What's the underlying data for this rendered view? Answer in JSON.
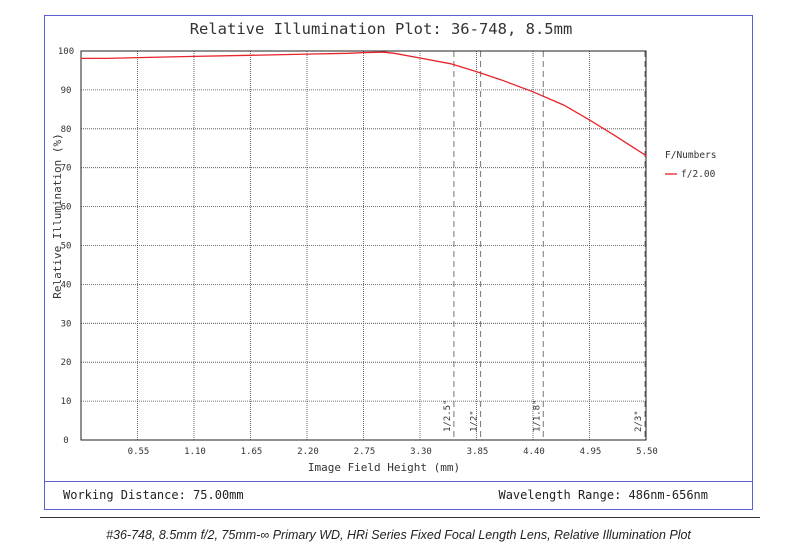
{
  "chart_data": {
    "type": "line",
    "title": "Relative Illumination Plot: 36-748, 8.5mm",
    "xlabel": "Image Field Height (mm)",
    "ylabel": "Relative Illumination (%)",
    "xlim": [
      0,
      5.5
    ],
    "ylim": [
      0,
      100
    ],
    "x_ticks": [
      "0.55",
      "1.10",
      "1.65",
      "2.20",
      "2.75",
      "3.30",
      "3.85",
      "4.40",
      "4.95",
      "5.50"
    ],
    "x_tick_values": [
      0.55,
      1.1,
      1.65,
      2.2,
      2.75,
      3.3,
      3.85,
      4.4,
      4.95,
      5.5
    ],
    "y_ticks": [
      "0",
      "10",
      "20",
      "30",
      "40",
      "50",
      "60",
      "70",
      "80",
      "90",
      "100"
    ],
    "y_tick_values": [
      0,
      10,
      20,
      30,
      40,
      50,
      60,
      70,
      80,
      90,
      100
    ],
    "grid": true,
    "legend_title": "F/Numbers",
    "legend_position": "right",
    "series": [
      {
        "name": "f/2.00",
        "color": "#e8232a",
        "x": [
          0,
          0.25,
          0.55,
          1.1,
          1.65,
          2.2,
          2.6,
          2.75,
          2.95,
          3.05,
          3.3,
          3.6,
          3.85,
          4.1,
          4.4,
          4.7,
          4.95,
          5.2,
          5.5
        ],
        "y": [
          98.1,
          98.1,
          98.3,
          98.6,
          98.9,
          99.2,
          99.4,
          99.6,
          99.7,
          99.4,
          98.2,
          96.7,
          94.7,
          92.5,
          89.5,
          86.1,
          82.3,
          78.2,
          73.1
        ]
      }
    ],
    "sensor_markers": [
      {
        "label": "1/2.5\"",
        "x": 3.63
      },
      {
        "label": "1/2\"",
        "x": 3.89
      },
      {
        "label": "1/1.8\"",
        "x": 4.5
      },
      {
        "label": "2/3\"",
        "x": 5.49
      }
    ]
  },
  "footer": {
    "working_distance": "Working Distance: 75.00mm",
    "wavelength_range": "Wavelength Range: 486nm-656nm"
  },
  "caption": "#36-748, 8.5mm f/2, 75mm-∞ Primary WD, HRi Series Fixed Focal Length Lens, Relative Illumination Plot"
}
